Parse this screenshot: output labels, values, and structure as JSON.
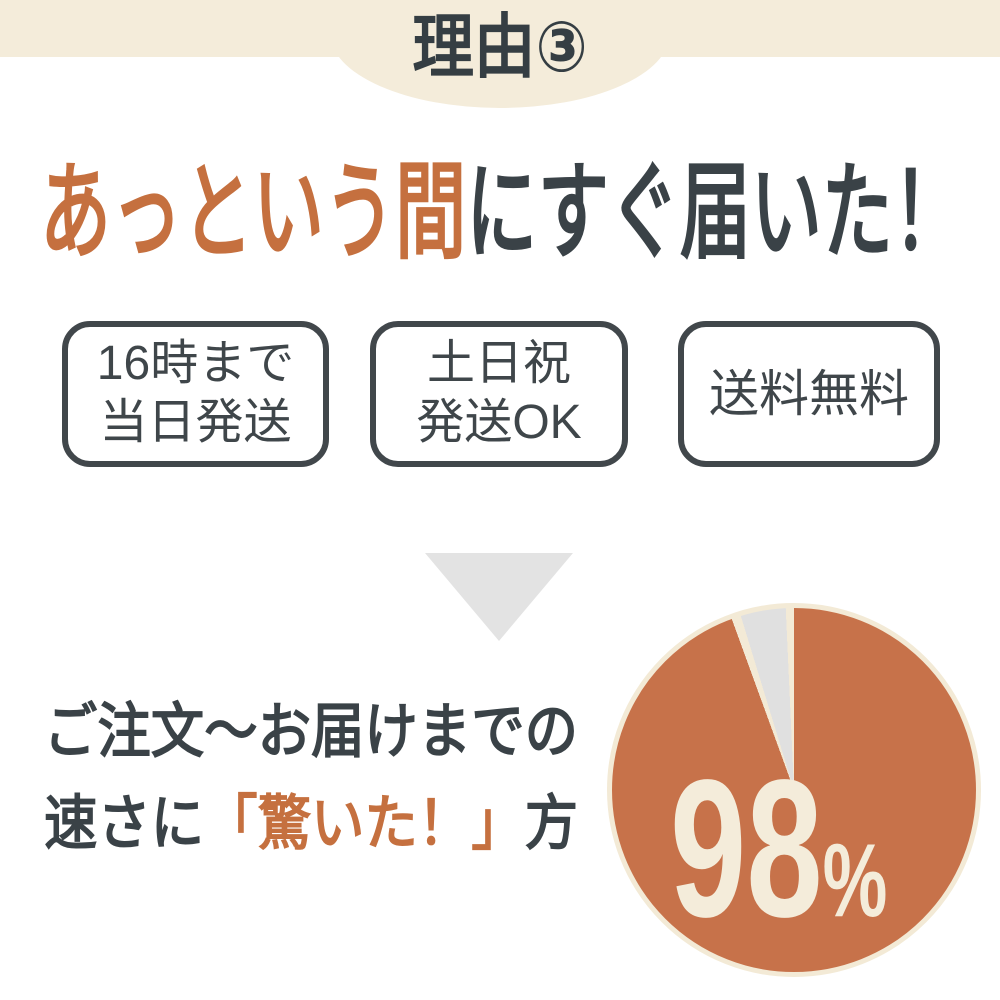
{
  "header": {
    "title": "理由③"
  },
  "headline": {
    "highlight": "あっという間",
    "rest": "にすぐ届いた！"
  },
  "badges": [
    {
      "lines": [
        "16時まで",
        "当日発送"
      ]
    },
    {
      "lines": [
        "土日祝",
        "発送OK"
      ]
    },
    {
      "lines": [
        "送料無料"
      ]
    }
  ],
  "caption": {
    "line1": "ご注文〜お届けまでの",
    "line2_prefix": "速さに",
    "line2_highlight": "「驚いた！」",
    "line2_suffix": "方"
  },
  "pie_label": {
    "value": "98",
    "unit": "%"
  },
  "chart_data": {
    "type": "pie",
    "labels": [
      "「驚いた！」方",
      ""
    ],
    "values": [
      98,
      2
    ],
    "unit": "%",
    "colors": [
      "#c7724a",
      "#e0e0e0"
    ],
    "annotation": "98%",
    "legend": "none",
    "title": "ご注文〜お届けまでの速さに「驚いた！」方"
  },
  "colors": {
    "cream": "#f4ecda",
    "dark_text": "#3a4247",
    "accent_orange": "#c5703f",
    "pie_orange": "#c7724a",
    "light_gray": "#e3e3e3"
  }
}
